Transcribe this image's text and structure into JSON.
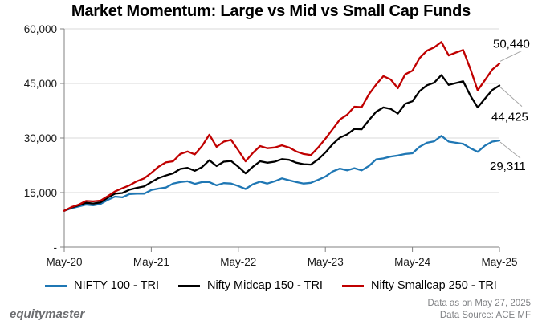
{
  "title": "Market Momentum: Large vs Mid vs Small Cap Funds",
  "chart_data": {
    "type": "line",
    "x_unit": "month",
    "months": [
      "May-20",
      "Jun-20",
      "Jul-20",
      "Aug-20",
      "Sep-20",
      "Oct-20",
      "Nov-20",
      "Dec-20",
      "Jan-21",
      "Feb-21",
      "Mar-21",
      "Apr-21",
      "May-21",
      "Jun-21",
      "Jul-21",
      "Aug-21",
      "Sep-21",
      "Oct-21",
      "Nov-21",
      "Dec-21",
      "Jan-22",
      "Feb-22",
      "Mar-22",
      "Apr-22",
      "May-22",
      "Jun-22",
      "Jul-22",
      "Aug-22",
      "Sep-22",
      "Oct-22",
      "Nov-22",
      "Dec-22",
      "Jan-23",
      "Feb-23",
      "Mar-23",
      "Apr-23",
      "May-23",
      "Jun-23",
      "Jul-23",
      "Aug-23",
      "Sep-23",
      "Oct-23",
      "Nov-23",
      "Dec-23",
      "Jan-24",
      "Feb-24",
      "Mar-24",
      "Apr-24",
      "May-24",
      "Jun-24",
      "Jul-24",
      "Aug-24",
      "Sep-24",
      "Oct-24",
      "Nov-24",
      "Dec-24",
      "Jan-25",
      "Feb-25",
      "Mar-25",
      "Apr-25",
      "May-25"
    ],
    "x_tick_labels": [
      "May-20",
      "May-21",
      "May-22",
      "May-23",
      "May-24",
      "May-25"
    ],
    "y_ticks": [
      {
        "value": 0,
        "label": "-"
      },
      {
        "value": 15000,
        "label": "15,000"
      },
      {
        "value": 30000,
        "label": "30,000"
      },
      {
        "value": 45000,
        "label": "45,000"
      },
      {
        "value": 60000,
        "label": "60,000"
      }
    ],
    "ylim": [
      0,
      60000
    ],
    "grid": "horizontal",
    "legend_position": "bottom",
    "series": [
      {
        "name": "NIFTY 100 - TRI",
        "color": "#1F77B4",
        "end_label": "29,311",
        "values": [
          10000,
          10700,
          11200,
          11700,
          11500,
          11900,
          13000,
          13900,
          13700,
          14600,
          14700,
          14700,
          15700,
          16100,
          16400,
          17500,
          17900,
          18100,
          17400,
          17900,
          17900,
          17000,
          17600,
          17500,
          16800,
          16000,
          17300,
          18000,
          17500,
          18100,
          18900,
          18400,
          17900,
          17500,
          17700,
          18500,
          19400,
          20800,
          21600,
          21100,
          21700,
          21100,
          22300,
          24100,
          24400,
          24900,
          25200,
          25600,
          25800,
          27600,
          28700,
          29100,
          30600,
          29000,
          28700,
          28400,
          27200,
          26200,
          27900,
          29000,
          29311
        ]
      },
      {
        "name": "Nifty Midcap 150 - TRI",
        "color": "#000000",
        "end_label": "44,425",
        "values": [
          10000,
          10900,
          11500,
          12200,
          12000,
          12300,
          13600,
          14700,
          14900,
          15800,
          16300,
          16700,
          17900,
          19000,
          19700,
          20300,
          21500,
          21800,
          21000,
          22000,
          23900,
          22300,
          23500,
          23700,
          22100,
          20300,
          22100,
          23600,
          23200,
          23500,
          24200,
          24000,
          23200,
          22800,
          22700,
          24100,
          26000,
          28300,
          30100,
          31000,
          32500,
          32400,
          34900,
          37200,
          38400,
          38000,
          36700,
          39400,
          40100,
          42900,
          44500,
          45200,
          47300,
          44600,
          45100,
          45600,
          41600,
          38400,
          40800,
          43200,
          44425
        ]
      },
      {
        "name": "Nifty Smallcap 250 - TRI",
        "color": "#C00000",
        "end_label": "50,440",
        "values": [
          10000,
          11000,
          11700,
          12700,
          12600,
          12800,
          14000,
          15300,
          16200,
          17000,
          18100,
          18900,
          20400,
          22100,
          23300,
          23600,
          25600,
          26300,
          25500,
          27800,
          30900,
          27600,
          29000,
          29500,
          26600,
          23600,
          25900,
          27800,
          27200,
          27400,
          28000,
          27400,
          26300,
          25600,
          25300,
          27400,
          29800,
          32400,
          35100,
          36400,
          38600,
          38500,
          42000,
          44700,
          47000,
          46100,
          43700,
          47500,
          48500,
          52000,
          54000,
          54900,
          56400,
          52700,
          53500,
          54200,
          48900,
          43100,
          45900,
          48800,
          50440
        ]
      }
    ]
  },
  "legend": {
    "items": [
      {
        "label": "NIFTY 100 - TRI"
      },
      {
        "label": "Nifty Midcap 150 - TRI"
      },
      {
        "label": "Nifty Smallcap 250 - TRI"
      }
    ]
  },
  "footer": {
    "brand": "equitymaster",
    "note_line1": "Data as on May 27, 2025",
    "note_line2": "Data Source: ACE MF"
  },
  "colors": {
    "blue": "#1F77B4",
    "black": "#000000",
    "red": "#C00000",
    "grid": "#D9D9D9",
    "axis": "#808080",
    "leader": "#A6A6A6",
    "tick_text": "#1A1A1A",
    "footer_text": "#808285",
    "brand_text": "#6D6E71"
  }
}
